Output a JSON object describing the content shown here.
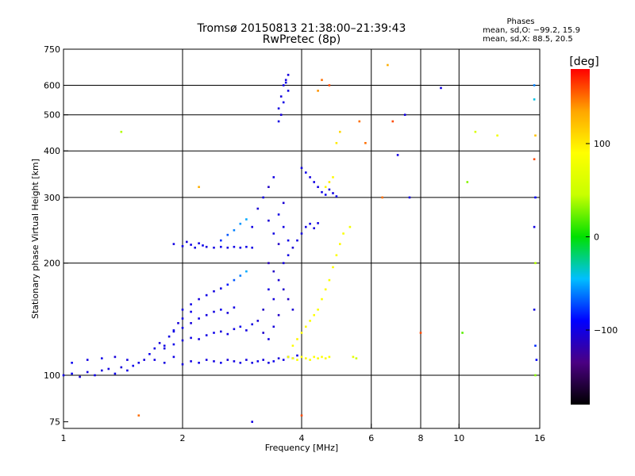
{
  "chart_data": {
    "type": "scatter",
    "title": "Tromsø 20150813 21:38:00–21:39:43",
    "subtitle": "RwPretec (8p)",
    "xlabel": "Frequency [MHz]",
    "ylabel": "Stationary phase Virtual Height [km]",
    "x_scale": "log",
    "y_scale": "log",
    "xlim": [
      1,
      16
    ],
    "ylim": [
      72,
      750
    ],
    "x_ticks": [
      {
        "value": 1,
        "label": "1"
      },
      {
        "value": 2,
        "label": "2"
      },
      {
        "value": 4,
        "label": "4"
      },
      {
        "value": 6,
        "label": "6"
      },
      {
        "value": 8,
        "label": "8"
      },
      {
        "value": 10,
        "label": "10"
      },
      {
        "value": 16,
        "label": "16"
      }
    ],
    "y_ticks": [
      {
        "value": 75,
        "label": "75"
      },
      {
        "value": 100,
        "label": "100"
      },
      {
        "value": 200,
        "label": "200"
      },
      {
        "value": 300,
        "label": "300"
      },
      {
        "value": 400,
        "label": "400"
      },
      {
        "value": 500,
        "label": "500"
      },
      {
        "value": 600,
        "label": "600"
      },
      {
        "value": 750,
        "label": "750"
      }
    ],
    "x_grid": [
      2,
      4,
      6,
      8,
      10
    ],
    "y_grid": [
      100,
      200,
      300,
      400,
      500,
      600
    ],
    "grid": true,
    "phases_box": {
      "title": "Phases",
      "line1": "mean, sd,O: −99.2, 15.9",
      "line2": "mean, sd,X:  88.5, 20.5"
    },
    "colorbar": {
      "label": "[deg]",
      "range": [
        -180,
        180
      ],
      "ticks": [
        {
          "value": 100,
          "label": "100"
        },
        {
          "value": 0,
          "label": "0"
        },
        {
          "value": -100,
          "label": "−100"
        }
      ],
      "colors": [
        "#000000",
        "#4b0082",
        "#0000ff",
        "#00bfff",
        "#00e000",
        "#c8ff00",
        "#ffff00",
        "#ffa500",
        "#ff0000"
      ]
    },
    "points": [
      [
        1.0,
        100,
        -100
      ],
      [
        1.05,
        101,
        -95
      ],
      [
        1.1,
        99,
        -105
      ],
      [
        1.15,
        102,
        -100
      ],
      [
        1.2,
        100,
        -98
      ],
      [
        1.25,
        103,
        -102
      ],
      [
        1.3,
        104,
        -100
      ],
      [
        1.35,
        101,
        -97
      ],
      [
        1.4,
        105,
        -103
      ],
      [
        1.45,
        103,
        -99
      ],
      [
        1.05,
        108,
        -95
      ],
      [
        1.15,
        110,
        -100
      ],
      [
        1.25,
        111,
        -98
      ],
      [
        1.35,
        112,
        -103
      ],
      [
        1.45,
        110,
        -100
      ],
      [
        1.5,
        106,
        -96
      ],
      [
        1.55,
        108,
        -100
      ],
      [
        1.6,
        110,
        -102
      ],
      [
        1.65,
        114,
        -97
      ],
      [
        1.7,
        118,
        -100
      ],
      [
        1.75,
        122,
        -103
      ],
      [
        1.8,
        120,
        -99
      ],
      [
        1.85,
        127,
        -100
      ],
      [
        1.9,
        132,
        -96
      ],
      [
        1.95,
        138,
        -104
      ],
      [
        2.0,
        142,
        -100
      ],
      [
        2.1,
        148,
        -97
      ],
      [
        1.7,
        110,
        -100
      ],
      [
        1.8,
        108,
        -101
      ],
      [
        1.9,
        112,
        -99
      ],
      [
        2.0,
        107,
        -102
      ],
      [
        2.1,
        109,
        -100
      ],
      [
        2.2,
        108,
        -98
      ],
      [
        2.3,
        110,
        -101
      ],
      [
        2.4,
        109,
        -100
      ],
      [
        2.5,
        108,
        -97
      ],
      [
        2.6,
        110,
        -103
      ],
      [
        2.7,
        109,
        -100
      ],
      [
        2.8,
        108,
        -99
      ],
      [
        2.9,
        110,
        -101
      ],
      [
        3.0,
        108,
        -100
      ],
      [
        3.1,
        109,
        -98
      ],
      [
        3.2,
        110,
        -102
      ],
      [
        3.3,
        108,
        -100
      ],
      [
        3.4,
        109,
        -97
      ],
      [
        3.5,
        111,
        -103
      ],
      [
        3.6,
        110,
        -99
      ],
      [
        3.7,
        112,
        -100
      ],
      [
        3.8,
        111,
        -95
      ],
      [
        3.9,
        113,
        -100
      ],
      [
        1.8,
        118,
        -100
      ],
      [
        1.9,
        121,
        -98
      ],
      [
        2.0,
        124,
        -103
      ],
      [
        2.1,
        126,
        -99
      ],
      [
        2.2,
        125,
        -101
      ],
      [
        2.3,
        128,
        -100
      ],
      [
        2.4,
        130,
        -97
      ],
      [
        2.5,
        131,
        -103
      ],
      [
        2.6,
        129,
        -99
      ],
      [
        2.7,
        133,
        -100
      ],
      [
        2.8,
        135,
        -96
      ],
      [
        2.9,
        132,
        -101
      ],
      [
        3.0,
        137,
        -100
      ],
      [
        1.9,
        131,
        -100
      ],
      [
        2.0,
        134,
        -98
      ],
      [
        2.1,
        138,
        -102
      ],
      [
        2.2,
        142,
        -99
      ],
      [
        2.3,
        145,
        -101
      ],
      [
        2.4,
        148,
        -100
      ],
      [
        2.5,
        150,
        -97
      ],
      [
        2.6,
        147,
        -103
      ],
      [
        2.7,
        152,
        -100
      ],
      [
        2.0,
        150,
        -100
      ],
      [
        2.1,
        155,
        -98
      ],
      [
        2.2,
        160,
        -102
      ],
      [
        2.3,
        164,
        -99
      ],
      [
        2.4,
        168,
        -101
      ],
      [
        2.5,
        171,
        -100
      ],
      [
        2.6,
        175,
        -85
      ],
      [
        2.7,
        180,
        -70
      ],
      [
        2.8,
        185,
        -60
      ],
      [
        2.9,
        190,
        -50
      ],
      [
        1.9,
        225,
        -100
      ],
      [
        2.0,
        222,
        -98
      ],
      [
        2.05,
        228,
        -102
      ],
      [
        2.1,
        224,
        -99
      ],
      [
        2.15,
        220,
        -101
      ],
      [
        2.2,
        226,
        -100
      ],
      [
        2.25,
        223,
        -97
      ],
      [
        2.3,
        221,
        -103
      ],
      [
        2.4,
        220,
        -100
      ],
      [
        2.5,
        221,
        -98
      ],
      [
        2.6,
        220,
        -101
      ],
      [
        2.7,
        221,
        -99
      ],
      [
        2.8,
        220,
        -100
      ],
      [
        2.9,
        221,
        -98
      ],
      [
        3.0,
        220,
        -100
      ],
      [
        2.5,
        230,
        -80
      ],
      [
        2.6,
        238,
        -70
      ],
      [
        2.7,
        245,
        -60
      ],
      [
        2.8,
        255,
        -55
      ],
      [
        2.9,
        262,
        -50
      ],
      [
        3.0,
        250,
        -100
      ],
      [
        3.1,
        280,
        -105
      ],
      [
        3.2,
        300,
        -100
      ],
      [
        3.3,
        320,
        -110
      ],
      [
        3.4,
        340,
        -100
      ],
      [
        3.3,
        260,
        -105
      ],
      [
        3.4,
        240,
        -100
      ],
      [
        3.5,
        225,
        -110
      ],
      [
        3.5,
        270,
        -100
      ],
      [
        3.6,
        290,
        -105
      ],
      [
        3.6,
        250,
        -100
      ],
      [
        3.7,
        230,
        -98
      ],
      [
        3.3,
        200,
        -115
      ],
      [
        3.4,
        190,
        -110
      ],
      [
        3.5,
        180,
        -105
      ],
      [
        3.6,
        170,
        -108
      ],
      [
        3.7,
        160,
        -110
      ],
      [
        3.8,
        150,
        -105
      ],
      [
        3.3,
        170,
        -100
      ],
      [
        3.4,
        160,
        -102
      ],
      [
        3.2,
        150,
        -110
      ],
      [
        3.1,
        140,
        -105
      ],
      [
        3.2,
        130,
        -108
      ],
      [
        3.3,
        125,
        -100
      ],
      [
        3.4,
        135,
        -103
      ],
      [
        3.5,
        145,
        -110
      ],
      [
        3.6,
        200,
        -102
      ],
      [
        3.7,
        210,
        -100
      ],
      [
        3.8,
        220,
        -105
      ],
      [
        3.9,
        230,
        -100
      ],
      [
        4.0,
        240,
        -102
      ],
      [
        4.1,
        250,
        -100
      ],
      [
        4.2,
        255,
        -98
      ],
      [
        4.3,
        248,
        -103
      ],
      [
        4.4,
        256,
        -100
      ],
      [
        3.5,
        520,
        -100
      ],
      [
        3.55,
        560,
        -102
      ],
      [
        3.6,
        600,
        -98
      ],
      [
        3.65,
        620,
        -101
      ],
      [
        3.7,
        580,
        -100
      ],
      [
        3.55,
        500,
        -103
      ],
      [
        3.6,
        540,
        -99
      ],
      [
        3.65,
        610,
        -100
      ],
      [
        3.7,
        640,
        -102
      ],
      [
        3.5,
        480,
        -100
      ],
      [
        4.0,
        360,
        -100
      ],
      [
        4.1,
        350,
        -98
      ],
      [
        4.2,
        340,
        -102
      ],
      [
        4.3,
        330,
        -99
      ],
      [
        4.4,
        320,
        -101
      ],
      [
        4.5,
        310,
        -100
      ],
      [
        4.6,
        305,
        -97
      ],
      [
        4.7,
        315,
        -103
      ],
      [
        4.8,
        308,
        -100
      ],
      [
        4.9,
        302,
        -98
      ],
      [
        3.7,
        112,
        80
      ],
      [
        3.8,
        111,
        85
      ],
      [
        3.9,
        110,
        90
      ],
      [
        4.0,
        112,
        88
      ],
      [
        4.1,
        111,
        92
      ],
      [
        4.2,
        110,
        87
      ],
      [
        4.3,
        112,
        90
      ],
      [
        4.4,
        111,
        85
      ],
      [
        4.5,
        112,
        88
      ],
      [
        4.6,
        111,
        92
      ],
      [
        4.7,
        112,
        86
      ],
      [
        5.4,
        112,
        70
      ],
      [
        5.5,
        111,
        50
      ],
      [
        3.8,
        120,
        90
      ],
      [
        3.9,
        125,
        95
      ],
      [
        4.0,
        130,
        88
      ],
      [
        4.1,
        135,
        92
      ],
      [
        4.2,
        140,
        87
      ],
      [
        4.3,
        145,
        90
      ],
      [
        4.4,
        150,
        85
      ],
      [
        4.5,
        160,
        88
      ],
      [
        4.6,
        170,
        92
      ],
      [
        4.7,
        180,
        86
      ],
      [
        4.8,
        195,
        90
      ],
      [
        4.9,
        210,
        88
      ],
      [
        5.0,
        225,
        92
      ],
      [
        5.1,
        240,
        85
      ],
      [
        5.3,
        250,
        80
      ],
      [
        4.6,
        320,
        95
      ],
      [
        4.7,
        330,
        100
      ],
      [
        4.8,
        340,
        92
      ],
      [
        4.9,
        420,
        100
      ],
      [
        5.0,
        450,
        110
      ],
      [
        4.4,
        580,
        140
      ],
      [
        4.5,
        620,
        150
      ],
      [
        4.7,
        600,
        160
      ],
      [
        6.6,
        680,
        130
      ],
      [
        6.8,
        480,
        160
      ],
      [
        10.5,
        330,
        30
      ],
      [
        10.2,
        130,
        20
      ],
      [
        11.0,
        450,
        60
      ],
      [
        12.5,
        440,
        80
      ],
      [
        15.5,
        600,
        -60
      ],
      [
        15.5,
        550,
        -40
      ],
      [
        15.6,
        440,
        120
      ],
      [
        15.6,
        300,
        -90
      ],
      [
        15.5,
        250,
        -100
      ],
      [
        15.6,
        200,
        40
      ],
      [
        15.5,
        150,
        -100
      ],
      [
        15.6,
        120,
        -80
      ],
      [
        15.7,
        110,
        -90
      ],
      [
        15.6,
        100,
        30
      ],
      [
        15.5,
        380,
        160
      ],
      [
        1.4,
        450,
        40
      ],
      [
        1.55,
        78,
        150
      ],
      [
        2.2,
        320,
        130
      ],
      [
        3.0,
        75,
        -100
      ],
      [
        4.0,
        78,
        160
      ],
      [
        7.0,
        390,
        -100
      ],
      [
        7.3,
        500,
        -100
      ],
      [
        8.0,
        130,
        160
      ],
      [
        9.0,
        590,
        -100
      ],
      [
        6.4,
        300,
        150
      ],
      [
        5.6,
        480,
        150
      ],
      [
        5.8,
        420,
        150
      ],
      [
        7.5,
        300,
        -100
      ]
    ]
  }
}
